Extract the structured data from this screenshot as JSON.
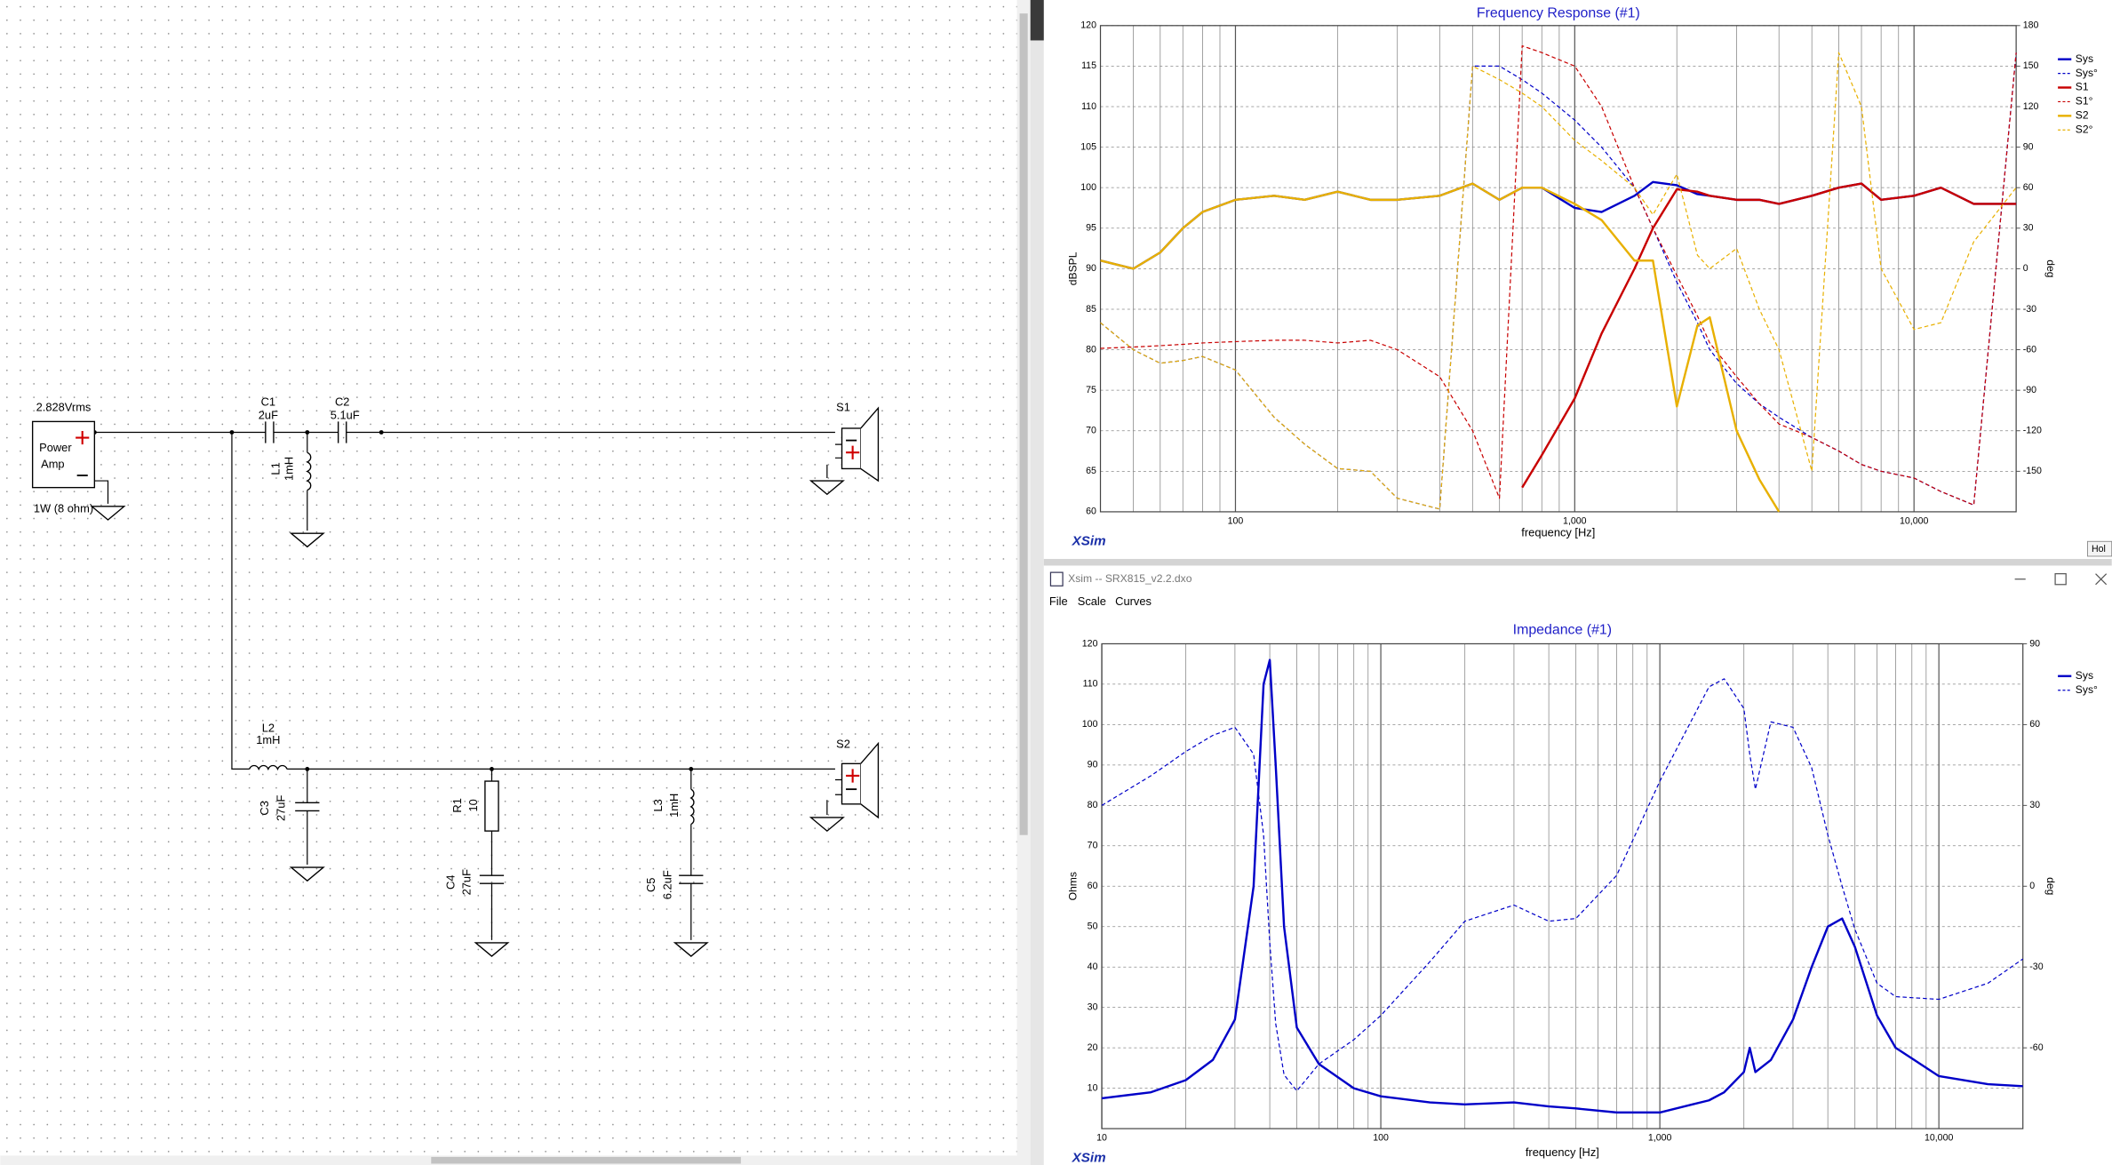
{
  "schematic": {
    "source": {
      "voltage": "2.828Vrms",
      "name_line1": "Power",
      "name_line2": "Amp",
      "rating": "1W (8 ohm)"
    },
    "parts": [
      {
        "ref": "C1",
        "value": "2uF"
      },
      {
        "ref": "C2",
        "value": "5.1uF"
      },
      {
        "ref": "L1",
        "value": "1mH"
      },
      {
        "ref": "L2",
        "value": "1mH"
      },
      {
        "ref": "C3",
        "value": "27uF"
      },
      {
        "ref": "R1",
        "value": "10"
      },
      {
        "ref": "C4",
        "value": "27uF"
      },
      {
        "ref": "L3",
        "value": "1mH"
      },
      {
        "ref": "C5",
        "value": "6.2uF"
      }
    ],
    "speakers": [
      "S1",
      "S2"
    ]
  },
  "window": {
    "title": "Xsim -- SRX815_v2.2.dxo",
    "menu": [
      "File",
      "Scale",
      "Curves"
    ],
    "hold_button": "Hol"
  },
  "chart_data": [
    {
      "type": "line",
      "title": "Frequency Response (#1)",
      "x_label": "frequency [Hz]",
      "y_label": "dBSPL",
      "y2_label": "deg",
      "watermark": "XSim",
      "log_x": true,
      "grid": true,
      "legend": "right",
      "x": [
        40,
        50,
        60,
        70,
        80,
        100,
        130,
        160,
        200,
        250,
        300,
        400,
        500,
        600,
        700,
        800,
        1000,
        1200,
        1500,
        1700,
        2000,
        2300,
        2500,
        3000,
        3500,
        4000,
        5000,
        6000,
        7000,
        8000,
        10000,
        12000,
        15000,
        20000
      ],
      "xlim": [
        40,
        20000
      ],
      "xticks": [
        100,
        {
          "value": 1000,
          "label": "1,000"
        },
        {
          "value": 10000,
          "label": "10,000"
        }
      ],
      "ylim": [
        60,
        120
      ],
      "yticks": [
        60,
        65,
        70,
        75,
        80,
        85,
        90,
        95,
        100,
        105,
        110,
        115,
        120
      ],
      "y2lim": [
        -180,
        180
      ],
      "y2ticks": [
        -150,
        -120,
        -90,
        -60,
        -30,
        0,
        30,
        60,
        90,
        120,
        150,
        180
      ],
      "series": [
        {
          "name": "Sys",
          "color": "#0000c8",
          "style": "solid",
          "values": [
            91,
            90,
            92,
            95,
            97,
            98.5,
            99,
            98.5,
            99.5,
            98.5,
            98.5,
            99,
            100.5,
            98.5,
            100,
            100,
            97.5,
            97,
            99,
            100.7,
            100.3,
            99.2,
            99,
            98.5,
            98.5,
            98,
            99,
            100,
            100.5,
            98.5,
            99,
            100,
            98,
            98
          ]
        },
        {
          "name": "Sys°",
          "color": "#0000c8",
          "style": "dashed",
          "axis": "y2",
          "values": [
            -40,
            -60,
            -70,
            -68,
            -65,
            -75,
            -110,
            -130,
            -148,
            -150,
            -170,
            -178,
            150,
            150,
            140,
            130,
            110,
            90,
            60,
            30,
            -10,
            -40,
            -60,
            -85,
            -100,
            -110,
            -125,
            -135,
            -145,
            -150,
            -155,
            -165,
            -175,
            160
          ]
        },
        {
          "name": "S1",
          "color": "#c80000",
          "style": "solid",
          "values": [
            null,
            null,
            null,
            null,
            null,
            null,
            null,
            null,
            null,
            null,
            null,
            null,
            null,
            null,
            63,
            67,
            74,
            82,
            90,
            95,
            99.8,
            99.5,
            99,
            98.5,
            98.5,
            98,
            99,
            100,
            100.5,
            98.5,
            99,
            100,
            98,
            98
          ]
        },
        {
          "name": "S1°",
          "color": "#c80000",
          "style": "dashed",
          "axis": "y2",
          "values": [
            -59,
            -58,
            -57,
            -56,
            -55,
            -54,
            -53,
            -53,
            -55,
            -53,
            -60,
            -80,
            -120,
            -170,
            165,
            160,
            150,
            120,
            60,
            30,
            -5,
            -35,
            -55,
            -80,
            -100,
            -115,
            -125,
            -135,
            -145,
            -150,
            -155,
            -165,
            -175,
            160
          ]
        },
        {
          "name": "S2",
          "color": "#e8b000",
          "style": "solid",
          "values": [
            91,
            90,
            92,
            95,
            97,
            98.5,
            99,
            98.5,
            99.5,
            98.5,
            98.5,
            99,
            100.5,
            98.5,
            100,
            100,
            98,
            96,
            91,
            91,
            73,
            83,
            84,
            70,
            64,
            60,
            null,
            null,
            null,
            null,
            null,
            null,
            null,
            null
          ]
        },
        {
          "name": "S2°",
          "color": "#e8b000",
          "style": "dashed",
          "axis": "y2",
          "values": [
            -40,
            -60,
            -70,
            -68,
            -65,
            -75,
            -110,
            -130,
            -148,
            -150,
            -170,
            -178,
            150,
            140,
            130,
            120,
            95,
            80,
            60,
            40,
            70,
            10,
            0,
            15,
            -30,
            -60,
            -150,
            160,
            120,
            0,
            -45,
            -40,
            20,
            60
          ]
        }
      ]
    },
    {
      "type": "line",
      "title": "Impedance (#1)",
      "x_label": "frequency [Hz]",
      "y_label": "Ohms",
      "y2_label": "deg",
      "watermark": "XSim",
      "log_x": true,
      "grid": true,
      "legend": "right",
      "x": [
        10,
        15,
        20,
        25,
        30,
        35,
        38,
        40,
        42,
        45,
        50,
        60,
        80,
        100,
        150,
        200,
        300,
        400,
        500,
        700,
        1000,
        1500,
        1700,
        2000,
        2100,
        2200,
        2500,
        3000,
        3500,
        4000,
        4500,
        5000,
        6000,
        7000,
        10000,
        15000,
        20000
      ],
      "xlim": [
        10,
        20000
      ],
      "xticks": [
        10,
        100,
        {
          "value": 1000,
          "label": "1,000"
        },
        {
          "value": 10000,
          "label": "10,000"
        }
      ],
      "ylim": [
        0,
        120
      ],
      "yticks": [
        10,
        20,
        30,
        40,
        50,
        60,
        70,
        80,
        90,
        100,
        110,
        120
      ],
      "y2lim": [
        -90,
        90
      ],
      "y2ticks": [
        -60,
        -30,
        0,
        30,
        60,
        90
      ],
      "series": [
        {
          "name": "Sys",
          "color": "#0000c8",
          "style": "solid",
          "values": [
            7.5,
            9,
            12,
            17,
            27,
            60,
            110,
            116,
            90,
            50,
            25,
            16,
            10,
            8,
            6.5,
            6,
            6.5,
            5.5,
            5,
            4,
            4,
            7,
            9,
            14,
            20,
            14,
            17,
            27,
            40,
            50,
            52,
            45,
            28,
            20,
            13,
            11,
            10.5
          ]
        },
        {
          "name": "Sys°",
          "color": "#0000c8",
          "style": "dashed",
          "axis": "y2",
          "values": [
            30,
            41,
            50,
            56,
            59,
            49,
            19,
            -21,
            -51,
            -70,
            -76,
            -66,
            -57,
            -48,
            -28,
            -13,
            -7,
            -13,
            -12,
            4,
            39,
            74,
            77,
            66,
            49,
            36,
            61,
            59,
            44,
            19,
            0,
            -16,
            -36,
            -41,
            -42,
            -36,
            -27
          ]
        }
      ]
    }
  ]
}
